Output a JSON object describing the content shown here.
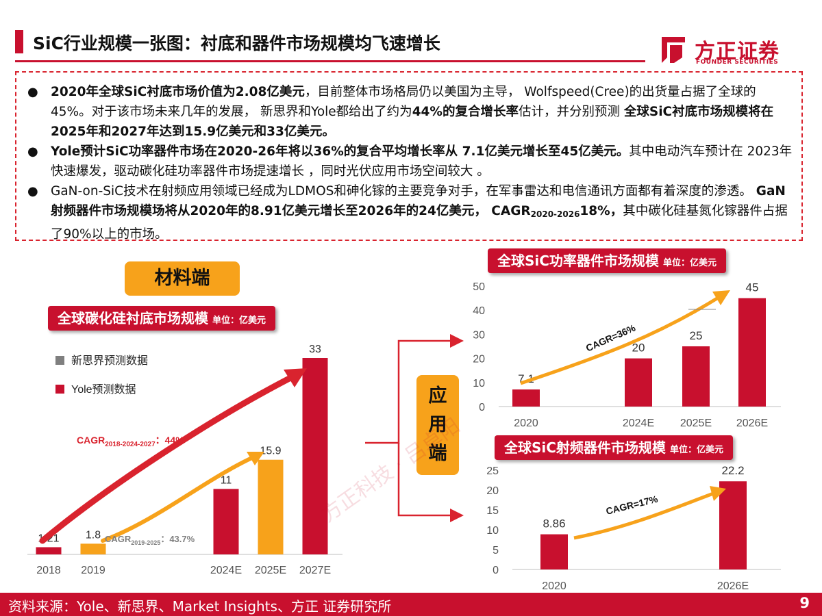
{
  "header": {
    "title": "SiC行业规模一张图：衬底和器件市场规模均飞速增长",
    "logo_cn": "方正证券",
    "logo_en": "FOUNDER SECURITIES"
  },
  "bullets": {
    "b1_bold1": "2020年全球SiC衬底市场价值为2.08亿美元",
    "b1_t1": "，目前整体市场格局仍以美国为主导， Wolfspeed(Cree)的出货量占据了全球的 45%。对于该市场未来几年的发展， 新思界和Yole都给出了约为",
    "b1_bold2": "44%的复合增长率",
    "b1_t2": "估计，并分别预测 ",
    "b1_bold3": "全球SiC衬底市场规模将在2025年和2027年达到15.9亿美元和33亿美元。",
    "b2_bold": "Yole预计SiC功率器件市场在2020-26年将以36%的复合平均增长率从 7.1亿美元增长至45亿美元。",
    "b2_t": "其中电动汽车预计在 2023年快速爆发，驱动碳化硅功率器件市场提速增长 ，同时光伏应用市场空间较大 。",
    "b3_t1": "GaN-on-SiC技术在射频应用领域已经成为LDMOS和砷化镓的主要竞争对手，在军事雷达和电信通讯方面都有着深度的渗透。 ",
    "b3_bold1": "GaN射频器件市场规模场将从2020年的8.91亿美元增长至2026年的24亿美元， CAGR",
    "b3_sub": "2020-2026",
    "b3_bold2": "18%，",
    "b3_t2": "其中碳化硅基氮化镓器件占据了90%以上的市场。"
  },
  "tags": {
    "material": "材料端",
    "app": [
      "应",
      "用",
      "端"
    ]
  },
  "chart_titles": {
    "substrate": "全球碳化硅衬底市场规模",
    "power": "全球SiC功率器件市场规模",
    "rf": "全球SiC射频器件市场规模",
    "unit": "单位：亿美元"
  },
  "colors": {
    "red": "#c8102e",
    "orange": "#f7a21b",
    "gray": "#7f7f7f"
  },
  "chart_data": [
    {
      "type": "bar",
      "title": "全球碳化硅衬底市场规模",
      "unit": "单位：亿美元",
      "categories": [
        "2018",
        "2019",
        "2024E",
        "2025E",
        "2027E"
      ],
      "values": [
        1.21,
        1.8,
        11,
        15.9,
        33
      ],
      "value_labels": [
        "1.21",
        "1.8",
        "11",
        "15.9",
        "33"
      ],
      "bar_series": [
        "Yole预测数据",
        "新思界预测数据",
        "Yole预测数据",
        "新思界预测数据",
        "Yole预测数据"
      ],
      "legend": [
        "新思界预测数据",
        "Yole预测数据"
      ],
      "ylim": [
        0,
        33
      ],
      "annotations": [
        {
          "text": "CAGR",
          "sub": "2018-2024-2027",
          "suffix": "：44%"
        },
        {
          "text": "CAGR",
          "sub": "2019-2025",
          "suffix": "：43.7%"
        }
      ]
    },
    {
      "type": "bar",
      "title": "全球SiC功率器件市场规模",
      "unit": "单位：亿美元",
      "categories": [
        "2020",
        "2024E",
        "2025E",
        "2026E"
      ],
      "values": [
        7.1,
        20,
        25,
        45
      ],
      "value_labels": [
        "7.1",
        "20",
        "25",
        "45"
      ],
      "ylim": [
        0,
        50
      ],
      "yticks": [
        0,
        10,
        20,
        30,
        40,
        50
      ],
      "annotation": "CAGR=36%"
    },
    {
      "type": "bar",
      "title": "全球SiC射频器件市场规模",
      "unit": "单位：亿美元",
      "categories": [
        "2020",
        "2026E"
      ],
      "values": [
        8.86,
        22.2
      ],
      "value_labels": [
        "8.86",
        "22.2"
      ],
      "ylim": [
        0,
        25
      ],
      "yticks": [
        0,
        5,
        10,
        15,
        20,
        25
      ],
      "annotation": "CAGR=17%"
    }
  ],
  "footer": {
    "source": "资料来源：Yole、新思界、Market Insights、方正 证券研究所",
    "page": "9"
  },
  "watermark": "方正科技 · 吕卓阳"
}
